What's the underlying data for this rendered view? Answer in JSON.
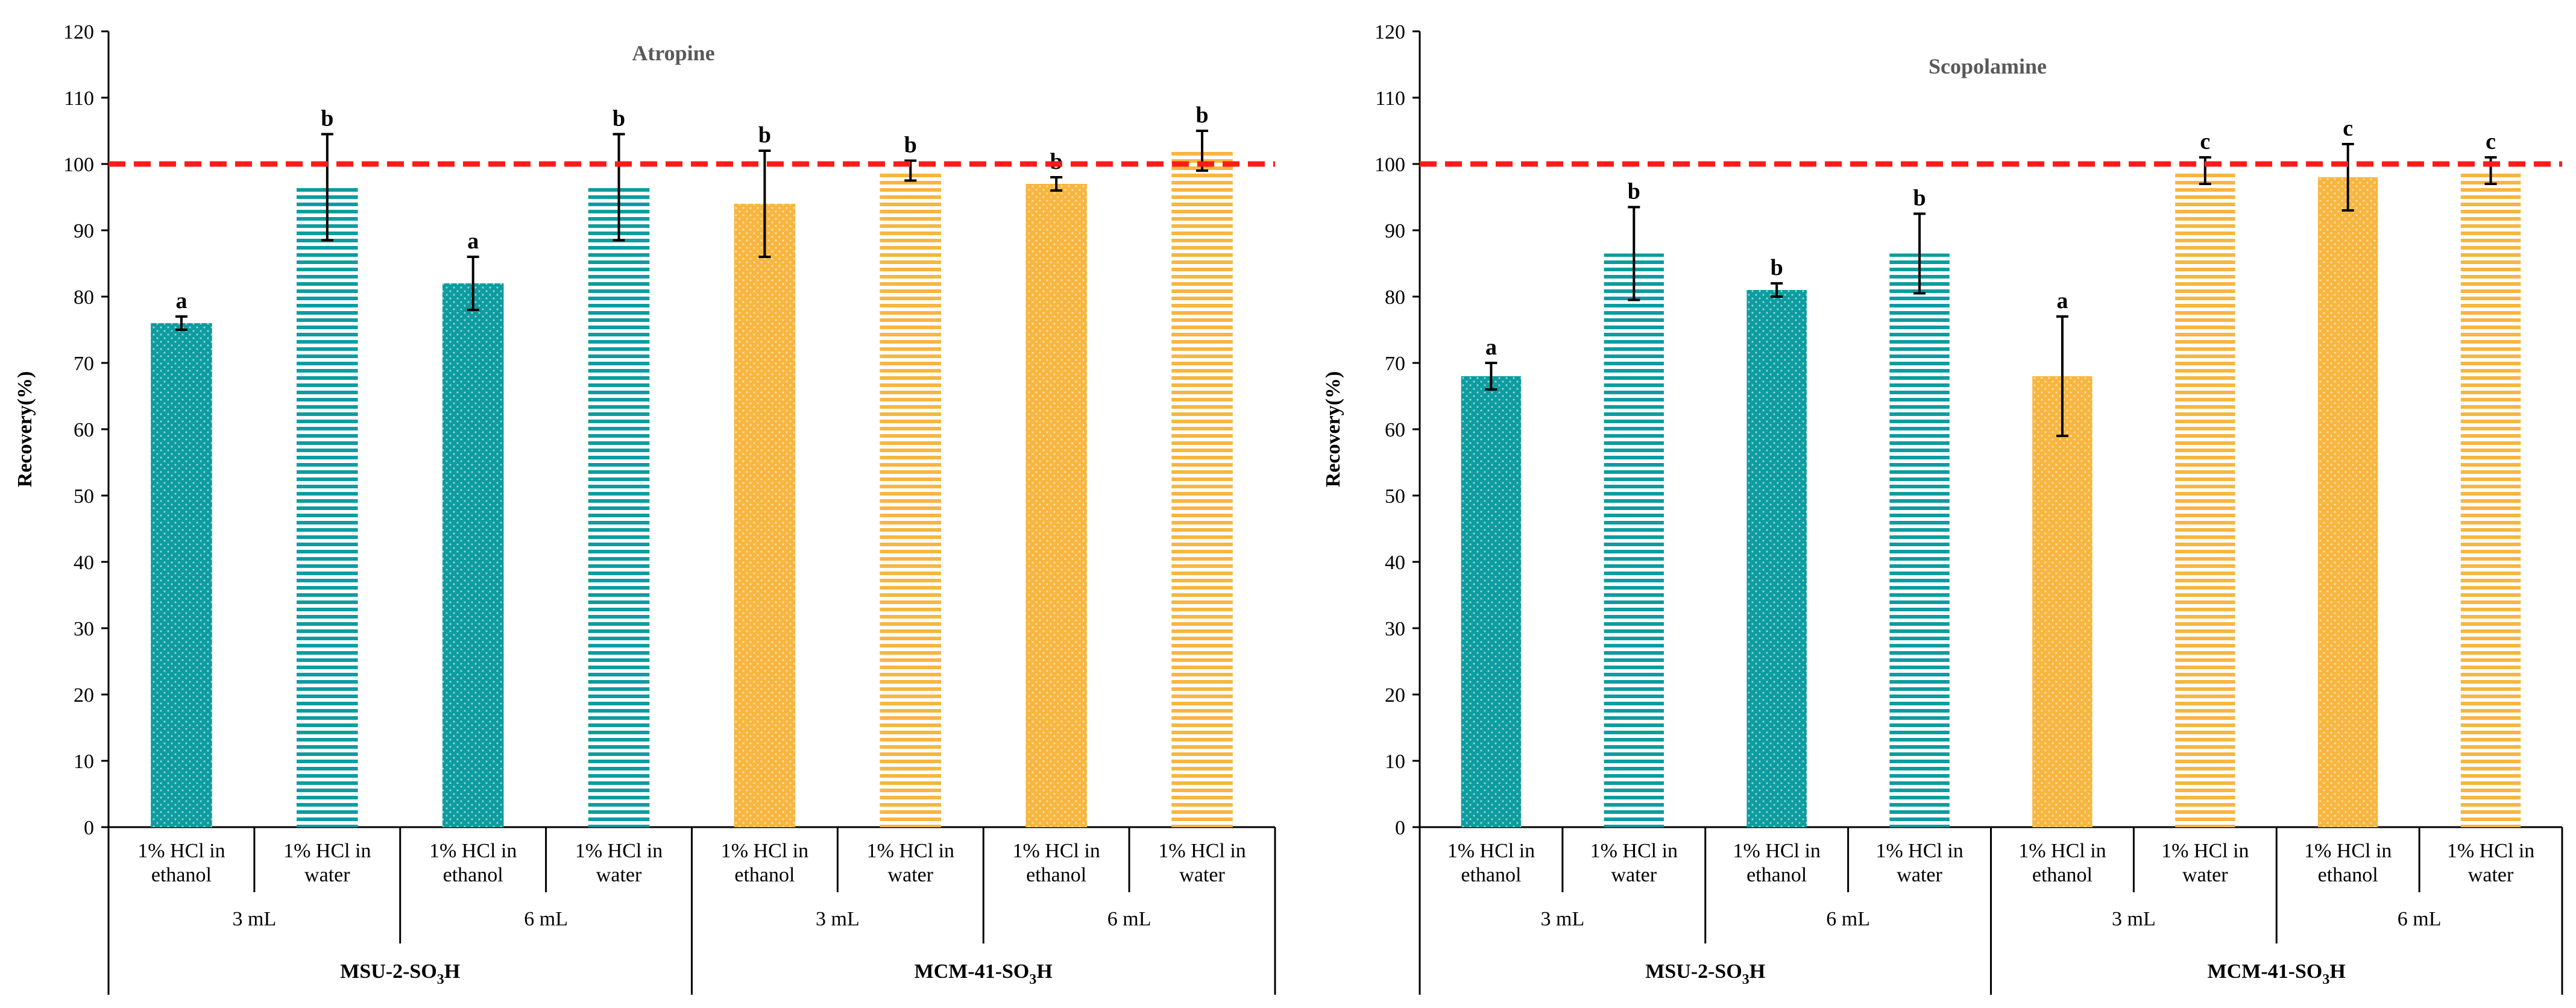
{
  "colors": {
    "teal": "#0D9C9F",
    "orange": "#F7B640",
    "reference_line": "#FF1A1A",
    "axis": "#000000",
    "error_bar": "#000000"
  },
  "chart_data": [
    {
      "type": "bar",
      "title": "Atropine",
      "ylabel": "Recovery(%)",
      "xlabel": "",
      "ylim": [
        0,
        120
      ],
      "yticks": [
        "0",
        "10",
        "20",
        "30",
        "40",
        "50",
        "60",
        "70",
        "80",
        "90",
        "100",
        "110",
        "120"
      ],
      "grid": false,
      "reference_line": 100,
      "categories": [
        "1% HCl in ethanol",
        "1% HCl in water",
        "1% HCl in ethanol",
        "1% HCl in water",
        "1% HCl in ethanol",
        "1% HCl in water",
        "1% HCl in ethanol",
        "1% HCl in water"
      ],
      "category_lines": [
        [
          "1% HCl in",
          "ethanol"
        ],
        [
          "1% HCl in",
          "water"
        ],
        [
          "1% HCl in",
          "ethanol"
        ],
        [
          "1% HCl in",
          "water"
        ],
        [
          "1% HCl in",
          "ethanol"
        ],
        [
          "1% HCl in",
          "water"
        ],
        [
          "1% HCl in",
          "ethanol"
        ],
        [
          "1% HCl in",
          "water"
        ]
      ],
      "volume_groups": [
        "3 mL",
        "6 mL",
        "3 mL",
        "6 mL"
      ],
      "material_groups": [
        {
          "name": "MSU-2-SO",
          "sub": "3",
          "suffix": "H"
        },
        {
          "name": "MCM-41-SO",
          "sub": "3",
          "suffix": "H"
        }
      ],
      "values": [
        76,
        96.5,
        82,
        96.5,
        94,
        99,
        97,
        102
      ],
      "errors": [
        1,
        8,
        4,
        8,
        8,
        1.5,
        1,
        3
      ],
      "letters": [
        "a",
        "b",
        "a",
        "b",
        "b",
        "b",
        "b",
        "b"
      ],
      "bar_colors": [
        "teal",
        "teal",
        "teal",
        "teal",
        "orange",
        "orange",
        "orange",
        "orange"
      ],
      "bar_patterns": [
        "dots",
        "stripes",
        "dots",
        "stripes",
        "dots",
        "stripes",
        "dots",
        "stripes"
      ]
    },
    {
      "type": "bar",
      "title": "Scopolamine",
      "ylabel": "Recovery(%)",
      "xlabel": "",
      "ylim": [
        0,
        120
      ],
      "yticks": [
        "0",
        "10",
        "20",
        "30",
        "40",
        "50",
        "60",
        "70",
        "80",
        "90",
        "100",
        "110",
        "120"
      ],
      "grid": false,
      "reference_line": 100,
      "categories": [
        "1% HCl in ethanol",
        "1% HCl in water",
        "1% HCl in ethanol",
        "1% HCl in water",
        "1% HCl in ethanol",
        "1% HCl in water",
        "1% HCl in ethanol",
        "1% HCl in water"
      ],
      "category_lines": [
        [
          "1% HCl in",
          "ethanol"
        ],
        [
          "1% HCl in",
          "water"
        ],
        [
          "1% HCl in",
          "ethanol"
        ],
        [
          "1% HCl in",
          "water"
        ],
        [
          "1% HCl in",
          "ethanol"
        ],
        [
          "1% HCl in",
          "water"
        ],
        [
          "1% HCl in",
          "ethanol"
        ],
        [
          "1% HCl in",
          "water"
        ]
      ],
      "volume_groups": [
        "3 mL",
        "6 mL",
        "3 mL",
        "6 mL"
      ],
      "material_groups": [
        {
          "name": "MSU-2-SO",
          "sub": "3",
          "suffix": "H"
        },
        {
          "name": "MCM-41-SO",
          "sub": "3",
          "suffix": "H"
        }
      ],
      "values": [
        68,
        86.5,
        81,
        86.5,
        68,
        99,
        98,
        99
      ],
      "errors": [
        2,
        7,
        1,
        6,
        9,
        2,
        5,
        2
      ],
      "letters": [
        "a",
        "b",
        "b",
        "b",
        "a",
        "c",
        "c",
        "c"
      ],
      "bar_colors": [
        "teal",
        "teal",
        "teal",
        "teal",
        "orange",
        "orange",
        "orange",
        "orange"
      ],
      "bar_patterns": [
        "dots",
        "stripes",
        "dots",
        "stripes",
        "dots",
        "stripes",
        "dots",
        "stripes"
      ]
    }
  ]
}
